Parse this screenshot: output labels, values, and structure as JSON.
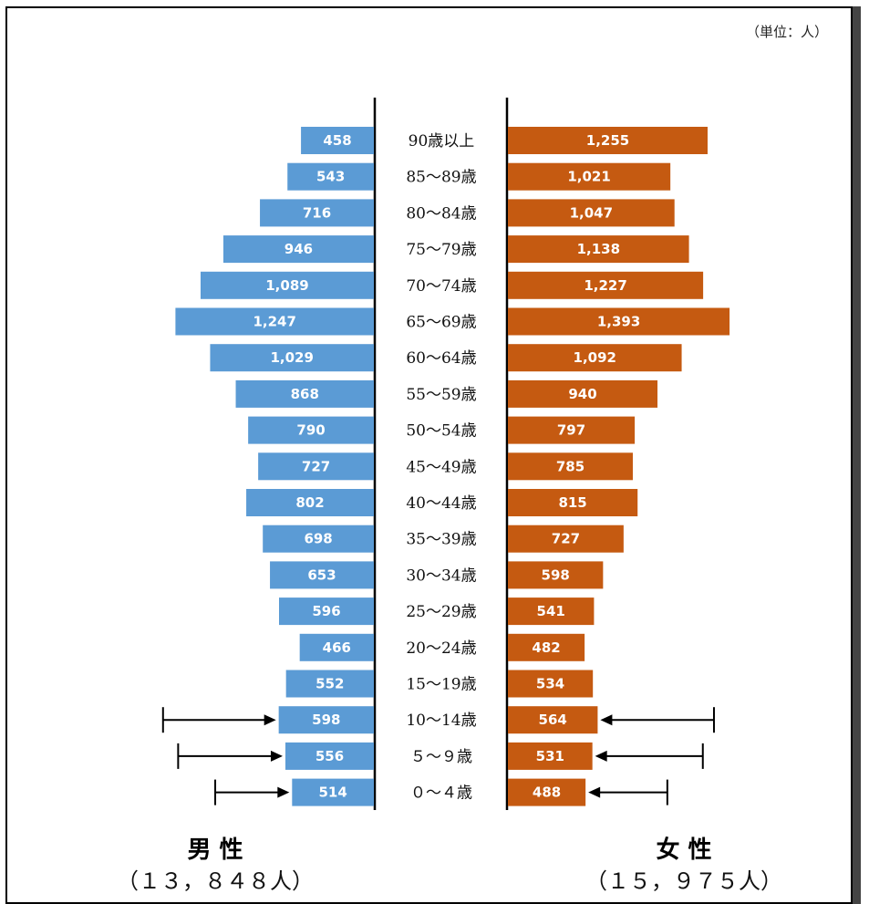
{
  "chart_data": {
    "type": "bar",
    "unit_label": "（単位：人）",
    "categories": [
      "90歳以上",
      "85～89歳",
      "80～84歳",
      "75～79歳",
      "70～74歳",
      "65～69歳",
      "60～64歳",
      "55～59歳",
      "50～54歳",
      "45～49歳",
      "40～44歳",
      "35～39歳",
      "30～34歳",
      "25～29歳",
      "20～24歳",
      "15～19歳",
      "10～14歳",
      "5～9歳",
      "0～4歳"
    ],
    "category_labels": [
      "90歳以上",
      "85～89歳",
      "80～84歳",
      "75～79歳",
      "70～74歳",
      "65～69歳",
      "60～64歳",
      "55～59歳",
      "50～54歳",
      "45～49歳",
      "40～44歳",
      "35～39歳",
      "30～34歳",
      "25～29歳",
      "20～24歳",
      "15～19歳",
      "10～14歳",
      "５～９歳",
      "０～４歳"
    ],
    "series": [
      {
        "name": "男 性",
        "total_label": "（１３，８４８人）",
        "color": "#5b9bd5",
        "values": [
          458,
          543,
          716,
          946,
          1089,
          1247,
          1029,
          868,
          790,
          727,
          802,
          698,
          653,
          596,
          466,
          552,
          598,
          556,
          514
        ],
        "labels": [
          "458",
          "543",
          "716",
          "946",
          "1,089",
          "1,247",
          "1,029",
          "868",
          "790",
          "727",
          "802",
          "698",
          "653",
          "596",
          "466",
          "552",
          "598",
          "556",
          "514"
        ]
      },
      {
        "name": "女 性",
        "total_label": "（１５，９７５人）",
        "color": "#c55a11",
        "values": [
          1255,
          1021,
          1047,
          1138,
          1227,
          1393,
          1092,
          940,
          797,
          785,
          815,
          727,
          598,
          541,
          482,
          534,
          564,
          531,
          488
        ],
        "labels": [
          "1,255",
          "1,021",
          "1,047",
          "1,138",
          "1,227",
          "1,393",
          "1,092",
          "940",
          "797",
          "785",
          "815",
          "727",
          "598",
          "541",
          "482",
          "534",
          "564",
          "531",
          "488"
        ]
      }
    ],
    "arrows": {
      "male_from": [
        1325,
        1230,
        997
      ],
      "female_to": [
        1295,
        1225,
        1002
      ]
    },
    "legend": "bottom"
  }
}
